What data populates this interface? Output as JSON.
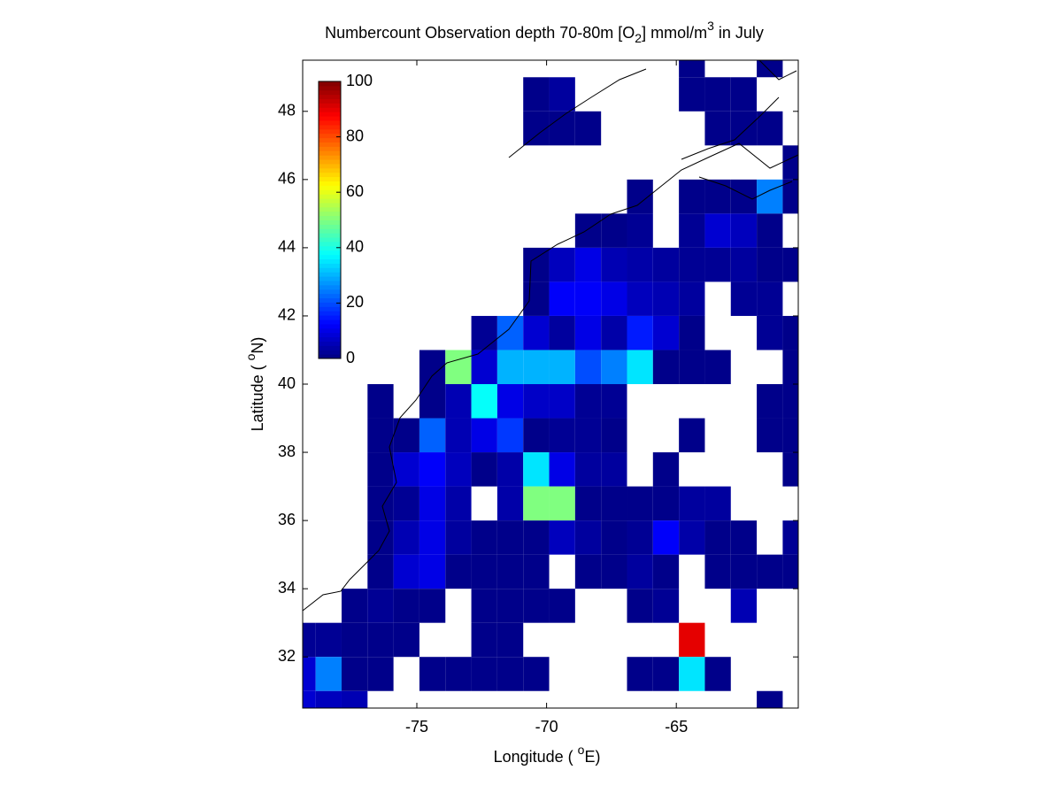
{
  "chart_data": {
    "type": "heatmap",
    "title": [
      "Numbercount Observation depth 70-80m [O",
      "2",
      "] mmol/m",
      "3",
      " in July"
    ],
    "x_label": [
      "Longitude ( ",
      "o",
      "E)"
    ],
    "y_label": [
      "Latitude ( ",
      "o",
      "N)"
    ],
    "x": [
      -79.4,
      -78.4,
      -77.4,
      -76.4,
      -75.4,
      -74.4,
      -73.4,
      -72.4,
      -71.4,
      -70.4,
      -69.4,
      -68.4,
      -67.4,
      -66.4,
      -65.4,
      -64.4,
      -63.4,
      -62.4,
      -61.4,
      -60.4
    ],
    "y": [
      49.5,
      48.5,
      47.5,
      46.5,
      45.5,
      44.5,
      43.5,
      42.5,
      41.5,
      40.5,
      39.5,
      38.5,
      37.5,
      36.5,
      35.5,
      34.5,
      33.5,
      32.5,
      31.5,
      30.5
    ],
    "values": [
      [
        null,
        null,
        null,
        null,
        null,
        null,
        null,
        null,
        null,
        null,
        null,
        null,
        null,
        null,
        null,
        1,
        null,
        null,
        1,
        null
      ],
      [
        null,
        null,
        null,
        null,
        null,
        null,
        null,
        null,
        null,
        1,
        3,
        null,
        null,
        null,
        null,
        1,
        1,
        1,
        null,
        null
      ],
      [
        null,
        null,
        null,
        null,
        null,
        null,
        null,
        null,
        null,
        1,
        1,
        1,
        null,
        null,
        null,
        null,
        1,
        1,
        1,
        null
      ],
      [
        null,
        null,
        null,
        null,
        null,
        null,
        null,
        null,
        null,
        null,
        null,
        null,
        null,
        null,
        null,
        null,
        null,
        null,
        null,
        1
      ],
      [
        null,
        null,
        null,
        null,
        null,
        null,
        null,
        null,
        null,
        null,
        null,
        null,
        null,
        1,
        null,
        1,
        1,
        1,
        25,
        1
      ],
      [
        null,
        null,
        null,
        null,
        null,
        null,
        null,
        null,
        null,
        null,
        null,
        1,
        1,
        2,
        null,
        2,
        8,
        6,
        1,
        null
      ],
      [
        null,
        null,
        null,
        null,
        null,
        null,
        null,
        null,
        null,
        1,
        6,
        10,
        5,
        4,
        3,
        2,
        2,
        3,
        1,
        1
      ],
      [
        null,
        null,
        null,
        null,
        null,
        null,
        null,
        null,
        null,
        1,
        12,
        12,
        10,
        6,
        5,
        3,
        null,
        2,
        2,
        null
      ],
      [
        null,
        null,
        null,
        null,
        null,
        null,
        null,
        2,
        22,
        8,
        3,
        10,
        4,
        15,
        8,
        1,
        null,
        null,
        2,
        1
      ],
      [
        null,
        null,
        null,
        null,
        null,
        1,
        50,
        8,
        30,
        30,
        30,
        20,
        25,
        35,
        1,
        1,
        1,
        null,
        null,
        1
      ],
      [
        null,
        null,
        null,
        1,
        null,
        1,
        5,
        38,
        10,
        7,
        7,
        2,
        2,
        null,
        null,
        null,
        null,
        null,
        1,
        1
      ],
      [
        null,
        null,
        null,
        1,
        1,
        22,
        5,
        10,
        18,
        1,
        2,
        2,
        1,
        null,
        null,
        1,
        null,
        null,
        1,
        1
      ],
      [
        null,
        null,
        null,
        1,
        8,
        12,
        6,
        1,
        4,
        35,
        10,
        3,
        3,
        null,
        1,
        null,
        null,
        null,
        null,
        1
      ],
      [
        null,
        null,
        null,
        1,
        2,
        10,
        4,
        null,
        4,
        50,
        50,
        1,
        1,
        1,
        1,
        3,
        3,
        null,
        null,
        null
      ],
      [
        null,
        null,
        null,
        1,
        5,
        10,
        3,
        1,
        1,
        1,
        6,
        3,
        1,
        2,
        12,
        4,
        1,
        1,
        null,
        2
      ],
      [
        null,
        null,
        null,
        1,
        8,
        10,
        1,
        1,
        1,
        1,
        null,
        1,
        1,
        3,
        1,
        null,
        1,
        1,
        1,
        1
      ],
      [
        null,
        null,
        1,
        2,
        1,
        1,
        null,
        1,
        1,
        1,
        1,
        null,
        null,
        1,
        2,
        null,
        null,
        5,
        null,
        null
      ],
      [
        2,
        2,
        1,
        1,
        1,
        null,
        null,
        1,
        1,
        null,
        null,
        null,
        null,
        null,
        null,
        90,
        null,
        null,
        null,
        null
      ],
      [
        8,
        25,
        1,
        1,
        null,
        1,
        1,
        1,
        1,
        1,
        null,
        null,
        null,
        1,
        1,
        35,
        1,
        null,
        null,
        null
      ],
      [
        8,
        6,
        5,
        null,
        null,
        null,
        null,
        null,
        null,
        null,
        null,
        null,
        null,
        null,
        null,
        null,
        null,
        null,
        1,
        null
      ]
    ],
    "xlim": [
      -79.4,
      -60.3
    ],
    "ylim": [
      30.5,
      49.5
    ],
    "xticks": [
      -75,
      -70,
      -65
    ],
    "yticks": [
      32,
      34,
      36,
      38,
      40,
      42,
      44,
      46,
      48
    ],
    "clim": [
      0,
      100
    ],
    "cticks": [
      0,
      20,
      40,
      60,
      80,
      100
    ],
    "colormap": "jet"
  }
}
